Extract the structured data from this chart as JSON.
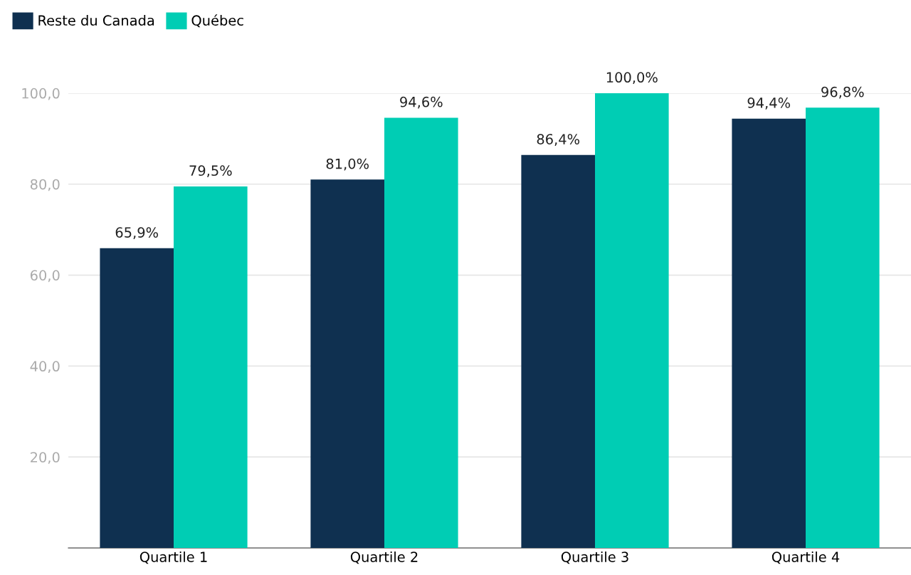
{
  "chart_data": {
    "type": "bar",
    "categories": [
      "Quartile 1",
      "Quartile 2",
      "Quartile 3",
      "Quartile 4"
    ],
    "series": [
      {
        "name": "Reste du Canada",
        "color": "#0f3050",
        "values": [
          65.9,
          81.0,
          86.4,
          94.4
        ],
        "value_labels": [
          "65,9%",
          "81,0%",
          "86,4%",
          "94,4%"
        ]
      },
      {
        "name": "Québec",
        "color": "#00cdb4",
        "values": [
          79.5,
          94.6,
          100.0,
          96.8
        ],
        "value_labels": [
          "79,5%",
          "94,6%",
          "100,0%",
          "96,8%"
        ]
      }
    ],
    "ylim": [
      0,
      100
    ],
    "yticks": [
      {
        "value": 20,
        "label": "20,0"
      },
      {
        "value": 40,
        "label": "40,0"
      },
      {
        "value": 60,
        "label": "60,0"
      },
      {
        "value": 80,
        "label": "80,0"
      },
      {
        "value": 100,
        "label": "100,0"
      }
    ],
    "grid": "y",
    "legend": "top left"
  }
}
